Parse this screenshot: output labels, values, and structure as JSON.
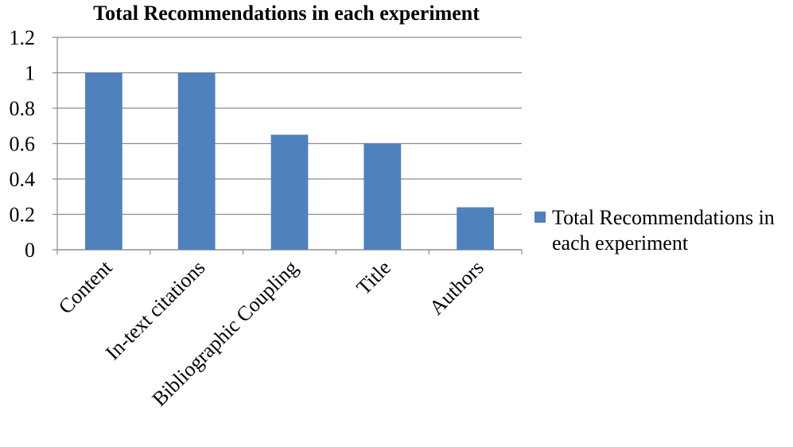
{
  "chart_data": {
    "type": "bar",
    "title": "Total Recommendations  in each experiment",
    "categories": [
      "Content",
      "In-text citations",
      "Bibliographic Coupling",
      "Title",
      "Authors"
    ],
    "series": [
      {
        "name": "Total Recommendations in each experiment",
        "values": [
          1.0,
          1.0,
          0.65,
          0.6,
          0.24
        ]
      }
    ],
    "xlabel": "",
    "ylabel": "",
    "ylim": [
      0,
      1.2
    ],
    "yticks": [
      "0",
      "0.2",
      "0.4",
      "0.6",
      "0.8",
      "1",
      "1.2"
    ],
    "grid": true,
    "legend_position": "right",
    "colors": {
      "bar": "#4f81bd",
      "grid": "#8c8c8c",
      "axis": "#8c8c8c"
    }
  }
}
